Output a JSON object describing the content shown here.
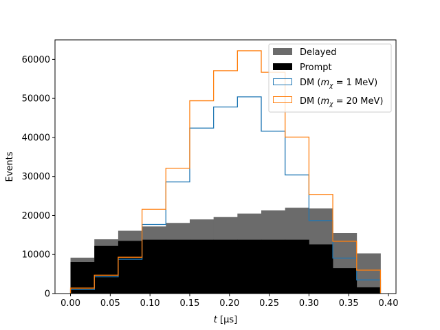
{
  "chart_data": {
    "type": "histogram",
    "xlabel_var": "t",
    "xlabel_unit": "[μs]",
    "ylabel": "Events",
    "xlim": [
      -0.0195,
      0.4095
    ],
    "ylim": [
      0,
      65000
    ],
    "grid": false,
    "legend_position": "top-right",
    "bin_edges": [
      0.0,
      0.03,
      0.06,
      0.09,
      0.12,
      0.15,
      0.18,
      0.21,
      0.24,
      0.27,
      0.3,
      0.33,
      0.36,
      0.39
    ],
    "x_ticks": [
      0.0,
      0.05,
      0.1,
      0.15,
      0.2,
      0.25,
      0.3,
      0.35,
      0.4
    ],
    "x_tick_labels": [
      "0.00",
      "0.05",
      "0.10",
      "0.15",
      "0.20",
      "0.25",
      "0.30",
      "0.35",
      "0.40"
    ],
    "y_ticks": [
      0,
      10000,
      20000,
      30000,
      40000,
      50000,
      60000
    ],
    "y_tick_labels": [
      "0",
      "10000",
      "20000",
      "30000",
      "40000",
      "50000",
      "60000"
    ],
    "series": [
      {
        "name": "Delayed",
        "style": "filled",
        "color": "#6b6b6b",
        "values": [
          9200,
          13900,
          16100,
          17200,
          18100,
          19000,
          19600,
          20500,
          21300,
          22000,
          21800,
          15500,
          10300
        ]
      },
      {
        "name": "Prompt",
        "style": "filled",
        "color": "#000000",
        "values": [
          8100,
          12200,
          13500,
          13800,
          13800,
          13800,
          13800,
          13800,
          13800,
          13800,
          12600,
          6500,
          1600
        ]
      },
      {
        "name": "DM (m_χ = 1 MeV)",
        "label_prefix": "DM (",
        "label_var": "m",
        "label_sub": "χ",
        "label_suffix": " = 1 MeV)",
        "style": "step",
        "color": "#1f77b4",
        "values": [
          1000,
          4300,
          8800,
          17700,
          28600,
          42400,
          47800,
          50400,
          41600,
          30400,
          18700,
          9100,
          3500
        ]
      },
      {
        "name": "DM (m_χ = 20 MeV)",
        "label_prefix": "DM (",
        "label_var": "m",
        "label_sub": "χ",
        "label_suffix": " = 20 MeV)",
        "style": "step",
        "color": "#ff7f0e",
        "values": [
          1400,
          4700,
          9300,
          21600,
          32100,
          49400,
          57100,
          62200,
          56700,
          40100,
          25400,
          13400,
          6000
        ]
      }
    ]
  }
}
